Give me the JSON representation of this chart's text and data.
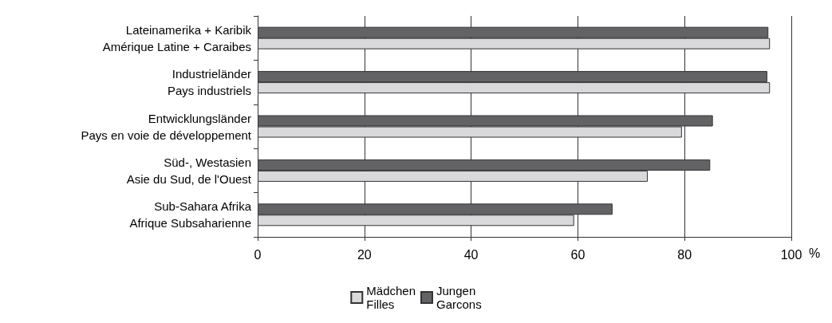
{
  "chart_data": {
    "type": "bar",
    "orientation": "horizontal",
    "xlabel": "%",
    "categories": [
      "Lateinamerika + Karibik\nAmérique Latine + Caraibes",
      "Industrieländer\nPays industriels",
      "Entwicklungsländer\nPays en voie de développement",
      "Süd-, Westasien\nAsie du Sud, de l'Ouest",
      "Sub-Sahara Afrika\nAfrique Subsaharienne"
    ],
    "series": [
      {
        "name": "Jungen\nGarcons",
        "color": "#636366",
        "values": [
          95.7,
          95.5,
          85.3,
          84.8,
          66.5
        ]
      },
      {
        "name": "Mädchen\nFilles",
        "color": "#d9d9db",
        "values": [
          96.0,
          96.0,
          79.5,
          73.1,
          59.3
        ]
      }
    ],
    "xlim": [
      0,
      100
    ],
    "xticks": [
      0,
      20,
      40,
      60,
      80,
      100
    ],
    "grid": "x",
    "legend": "bottom"
  }
}
